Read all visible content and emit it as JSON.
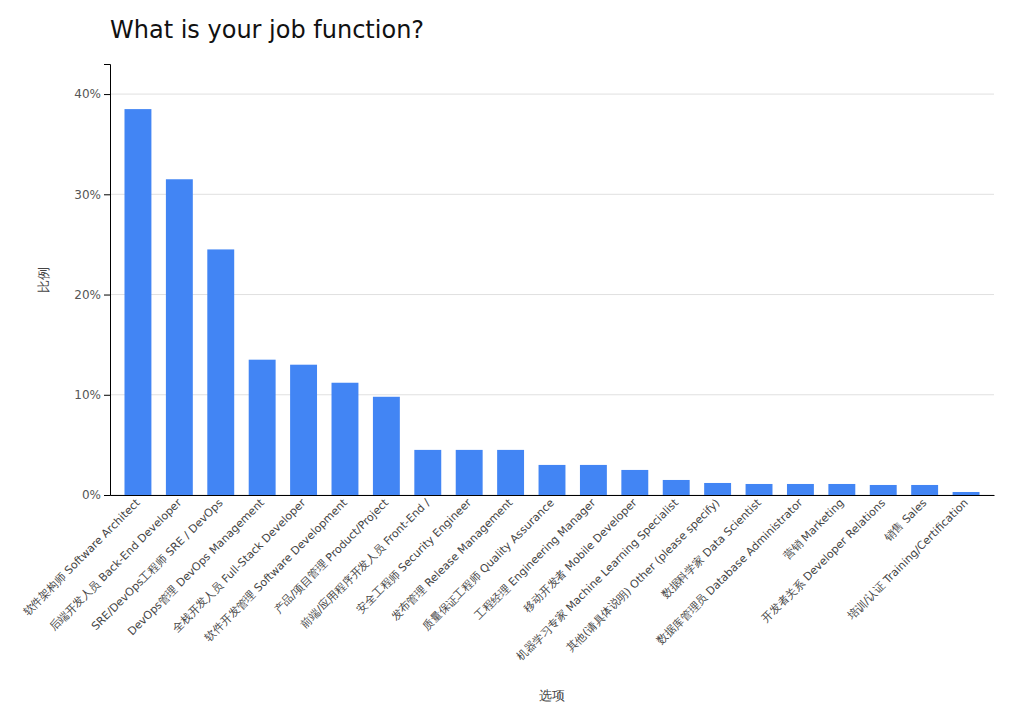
{
  "chart_data": {
    "type": "bar",
    "title": "What is your job function?",
    "x_label": "选项",
    "y_label": "比例",
    "categories": [
      "软件架构师 Software Architect",
      "后端开发人员 Back-End Developer",
      "SRE/DevOps工程师 SRE / DevOps",
      "DevOps管理 DevOps Management",
      "全栈开发人员 Full-Stack Developer",
      "软件开发管理 Software Development",
      "产品/项目管理 Product/Project",
      "前端/应用程序开发人员 Front-End /",
      "安全工程师 Security Engineer",
      "发布管理 Release Management",
      "质量保证工程师 Quality Assurance",
      "工程经理 Engineering Manager",
      "移动开发者 Mobile Developer",
      "机器学习专家 Machine Learning Specialist",
      "其他(请具体说明) Other (please specify)",
      "数据科学家 Data Scientist",
      "数据库管理员 Database Administrator",
      "营销 Marketing",
      "开发者关系 Developer Relations",
      "销售 Sales",
      "培训/认证 Training/Certification"
    ],
    "values": [
      38.5,
      31.5,
      24.5,
      13.5,
      13.0,
      11.2,
      9.8,
      4.5,
      4.5,
      4.5,
      3.0,
      3.0,
      2.5,
      1.5,
      1.2,
      1.1,
      1.1,
      1.1,
      1.0,
      1.0,
      0.3
    ],
    "color": "#4285f4",
    "ylim": [
      0,
      43
    ],
    "yticks": [
      {
        "value": 0,
        "label": "0%"
      },
      {
        "value": 10,
        "label": "10%"
      },
      {
        "value": 20,
        "label": "20%"
      },
      {
        "value": 30,
        "label": "30%"
      },
      {
        "value": 40,
        "label": "40%"
      }
    ],
    "grid": true
  }
}
